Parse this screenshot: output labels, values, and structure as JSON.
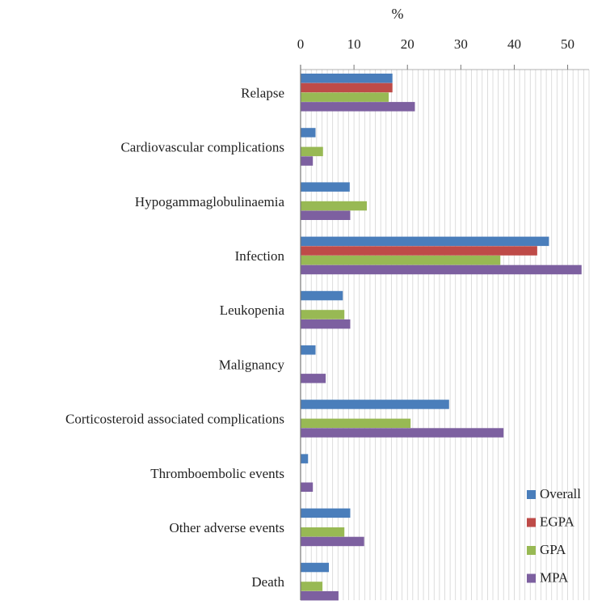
{
  "chart_data": {
    "type": "bar",
    "orientation": "horizontal",
    "title": "",
    "xlabel": "%",
    "ylabel": "",
    "xlim": [
      0,
      54
    ],
    "xticks": [
      0,
      10,
      20,
      30,
      40,
      50
    ],
    "grid": true,
    "legend_position": "bottom-right",
    "categories": [
      "Relapse",
      "Cardiovascular complications",
      "Hypogammaglobulinaemia",
      "Infection",
      "Leukopenia",
      "Malignancy",
      "Corticosteroid associated complications",
      "Thromboembolic events",
      "Other adverse events",
      "Death"
    ],
    "series": [
      {
        "name": "Overall",
        "color": "#4a7ebb",
        "values": [
          17.2,
          2.8,
          9.2,
          46.5,
          7.9,
          2.8,
          27.8,
          1.4,
          9.3,
          5.3
        ]
      },
      {
        "name": "EGPA",
        "color": "#be4b48",
        "values": [
          17.2,
          0,
          0,
          44.3,
          0,
          0,
          0,
          0,
          0,
          0
        ]
      },
      {
        "name": "GPA",
        "color": "#98b954",
        "values": [
          16.5,
          4.2,
          12.4,
          37.4,
          8.2,
          0,
          20.6,
          0,
          8.2,
          4.1
        ]
      },
      {
        "name": "MPA",
        "color": "#7d60a0",
        "values": [
          21.4,
          2.3,
          9.3,
          52.6,
          9.3,
          4.7,
          38.0,
          2.3,
          11.9,
          7.1
        ]
      }
    ]
  }
}
